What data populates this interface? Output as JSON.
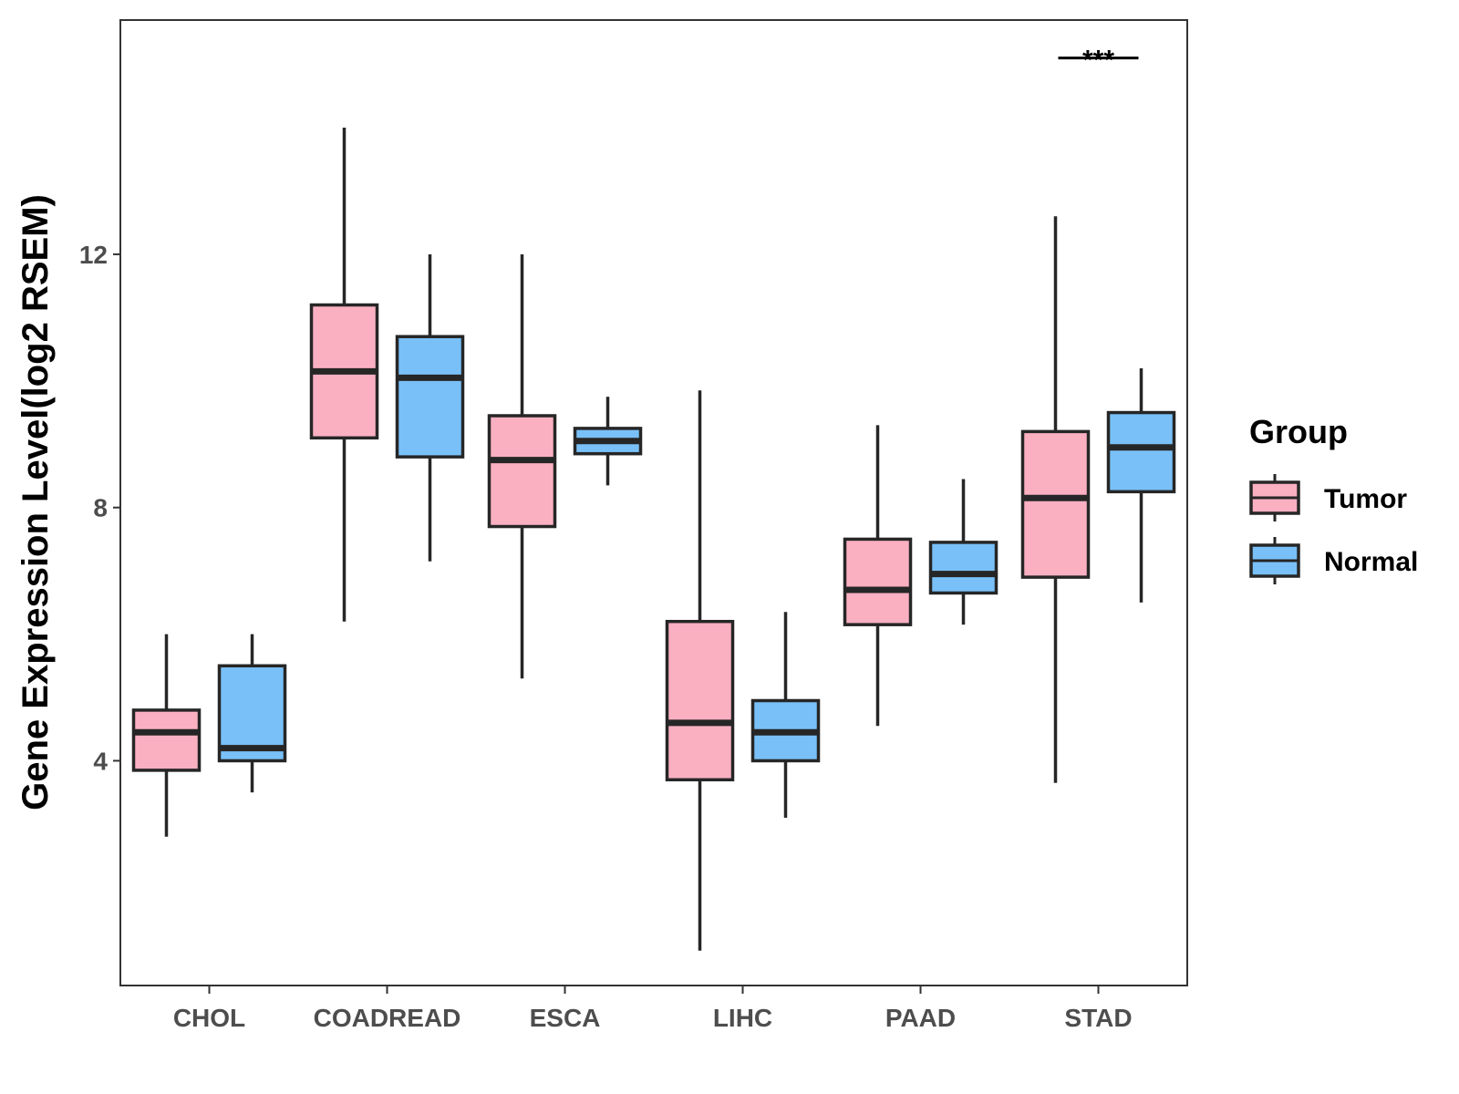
{
  "chart_data": {
    "type": "boxplot",
    "title": "",
    "xlabel": "",
    "ylabel": "Gene Expression Level(log2 RSEM)",
    "ylim": [
      0.45,
      15.7
    ],
    "yticks": [
      4,
      8,
      12
    ],
    "categories": [
      "CHOL",
      "COADREAD",
      "ESCA",
      "LIHC",
      "PAAD",
      "STAD"
    ],
    "legend": {
      "title": "Group",
      "position": "right"
    },
    "series": [
      {
        "name": "Tumor",
        "color": "#FBB0C2",
        "boxes": [
          {
            "min": 2.8,
            "q1": 3.85,
            "median": 4.45,
            "q3": 4.8,
            "max": 6.0
          },
          {
            "min": 6.2,
            "q1": 9.1,
            "median": 10.15,
            "q3": 11.2,
            "max": 14.0
          },
          {
            "min": 5.3,
            "q1": 7.7,
            "median": 8.75,
            "q3": 9.45,
            "max": 12.0
          },
          {
            "min": 1.0,
            "q1": 3.7,
            "median": 4.6,
            "q3": 6.2,
            "max": 9.85
          },
          {
            "min": 4.55,
            "q1": 6.15,
            "median": 6.7,
            "q3": 7.5,
            "max": 9.3
          },
          {
            "min": 3.65,
            "q1": 6.9,
            "median": 8.15,
            "q3": 9.2,
            "max": 12.6
          }
        ]
      },
      {
        "name": "Normal",
        "color": "#79C0F8",
        "boxes": [
          {
            "min": 3.5,
            "q1": 4.0,
            "median": 4.2,
            "q3": 5.5,
            "max": 6.0
          },
          {
            "min": 7.15,
            "q1": 8.8,
            "median": 10.05,
            "q3": 10.7,
            "max": 12.0
          },
          {
            "min": 8.35,
            "q1": 8.85,
            "median": 9.05,
            "q3": 9.25,
            "max": 9.75
          },
          {
            "min": 3.1,
            "q1": 4.0,
            "median": 4.45,
            "q3": 4.95,
            "max": 6.35
          },
          {
            "min": 6.15,
            "q1": 6.65,
            "median": 6.95,
            "q3": 7.45,
            "max": 8.45
          },
          {
            "min": 6.5,
            "q1": 8.25,
            "median": 8.95,
            "q3": 9.5,
            "max": 10.2
          }
        ]
      }
    ],
    "annotations": [
      {
        "category": "STAD",
        "text": "***",
        "y": 15.1
      }
    ]
  }
}
